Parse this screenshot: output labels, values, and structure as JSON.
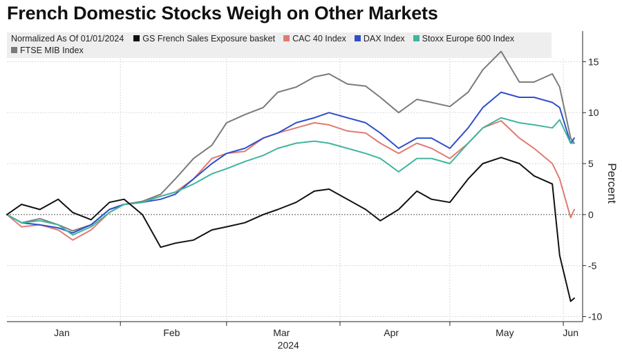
{
  "title": "French Domestic Stocks Weigh on Other Markets",
  "chart_data": {
    "type": "line",
    "title": "French Domestic Stocks Weigh on Other Markets",
    "subtitle": "Normalized As Of 01/01/2024",
    "xlabel": "2024",
    "ylabel": "Percent",
    "x_range": [
      "2024-01-01",
      "2024-06-04"
    ],
    "ylim": [
      -10.5,
      18
    ],
    "y_ticks": [
      -10,
      -5,
      0,
      5,
      10,
      15
    ],
    "x_ticks": [
      {
        "label": "Jan",
        "date": "2024-01-16"
      },
      {
        "label": "Feb",
        "date": "2024-02-15"
      },
      {
        "label": "Mar",
        "date": "2024-03-16"
      },
      {
        "label": "Apr",
        "date": "2024-04-15"
      },
      {
        "label": "May",
        "date": "2024-05-16"
      },
      {
        "label": "Jun",
        "date": "2024-06-03"
      }
    ],
    "grid": true,
    "legend_position": "top",
    "y_axis_side": "right",
    "series": [
      {
        "name": "FTSE MIB Index",
        "color": "#7a7a7a",
        "points": [
          [
            "2024-01-01",
            0.0
          ],
          [
            "2024-01-05",
            -0.8
          ],
          [
            "2024-01-10",
            -0.4
          ],
          [
            "2024-01-15",
            -1.0
          ],
          [
            "2024-01-19",
            -1.6
          ],
          [
            "2024-01-24",
            -1.0
          ],
          [
            "2024-01-29",
            0.5
          ],
          [
            "2024-02-02",
            1.0
          ],
          [
            "2024-02-07",
            1.3
          ],
          [
            "2024-02-12",
            2.0
          ],
          [
            "2024-02-16",
            3.5
          ],
          [
            "2024-02-21",
            5.5
          ],
          [
            "2024-02-26",
            6.8
          ],
          [
            "2024-03-01",
            9.0
          ],
          [
            "2024-03-06",
            9.8
          ],
          [
            "2024-03-11",
            10.5
          ],
          [
            "2024-03-15",
            12.0
          ],
          [
            "2024-03-20",
            12.5
          ],
          [
            "2024-03-25",
            13.5
          ],
          [
            "2024-03-29",
            13.8
          ],
          [
            "2024-04-03",
            12.8
          ],
          [
            "2024-04-08",
            12.6
          ],
          [
            "2024-04-12",
            11.5
          ],
          [
            "2024-04-17",
            10.0
          ],
          [
            "2024-04-22",
            11.3
          ],
          [
            "2024-04-26",
            11.0
          ],
          [
            "2024-05-01",
            10.6
          ],
          [
            "2024-05-06",
            12.0
          ],
          [
            "2024-05-10",
            14.2
          ],
          [
            "2024-05-15",
            16.0
          ],
          [
            "2024-05-20",
            13.0
          ],
          [
            "2024-05-24",
            13.0
          ],
          [
            "2024-05-29",
            13.8
          ],
          [
            "2024-05-31",
            12.5
          ],
          [
            "2024-06-03",
            7.5
          ],
          [
            "2024-06-04",
            7.0
          ]
        ]
      },
      {
        "name": "CAC 40 Index",
        "color": "#e07a72",
        "points": [
          [
            "2024-01-01",
            0.0
          ],
          [
            "2024-01-05",
            -1.2
          ],
          [
            "2024-01-10",
            -1.0
          ],
          [
            "2024-01-15",
            -1.5
          ],
          [
            "2024-01-19",
            -2.5
          ],
          [
            "2024-01-24",
            -1.5
          ],
          [
            "2024-01-29",
            0.2
          ],
          [
            "2024-02-02",
            1.0
          ],
          [
            "2024-02-07",
            1.2
          ],
          [
            "2024-02-12",
            1.8
          ],
          [
            "2024-02-16",
            2.2
          ],
          [
            "2024-02-21",
            3.5
          ],
          [
            "2024-02-26",
            5.5
          ],
          [
            "2024-03-01",
            6.0
          ],
          [
            "2024-03-06",
            6.2
          ],
          [
            "2024-03-11",
            7.5
          ],
          [
            "2024-03-15",
            8.0
          ],
          [
            "2024-03-20",
            8.5
          ],
          [
            "2024-03-25",
            9.0
          ],
          [
            "2024-03-29",
            8.8
          ],
          [
            "2024-04-03",
            8.2
          ],
          [
            "2024-04-08",
            8.0
          ],
          [
            "2024-04-12",
            7.0
          ],
          [
            "2024-04-17",
            6.0
          ],
          [
            "2024-04-22",
            7.0
          ],
          [
            "2024-04-26",
            6.5
          ],
          [
            "2024-05-01",
            5.5
          ],
          [
            "2024-05-06",
            7.0
          ],
          [
            "2024-05-10",
            8.5
          ],
          [
            "2024-05-15",
            9.2
          ],
          [
            "2024-05-20",
            7.5
          ],
          [
            "2024-05-24",
            6.5
          ],
          [
            "2024-05-29",
            5.0
          ],
          [
            "2024-05-31",
            3.5
          ],
          [
            "2024-06-03",
            -0.3
          ],
          [
            "2024-06-04",
            0.5
          ]
        ]
      },
      {
        "name": "DAX Index",
        "color": "#2f4fc9",
        "points": [
          [
            "2024-01-01",
            0.0
          ],
          [
            "2024-01-05",
            -0.8
          ],
          [
            "2024-01-10",
            -1.0
          ],
          [
            "2024-01-15",
            -1.3
          ],
          [
            "2024-01-19",
            -1.8
          ],
          [
            "2024-01-24",
            -1.0
          ],
          [
            "2024-01-29",
            0.5
          ],
          [
            "2024-02-02",
            1.0
          ],
          [
            "2024-02-07",
            1.2
          ],
          [
            "2024-02-12",
            1.5
          ],
          [
            "2024-02-16",
            2.0
          ],
          [
            "2024-02-21",
            3.5
          ],
          [
            "2024-02-26",
            5.0
          ],
          [
            "2024-03-01",
            6.0
          ],
          [
            "2024-03-06",
            6.5
          ],
          [
            "2024-03-11",
            7.5
          ],
          [
            "2024-03-15",
            8.0
          ],
          [
            "2024-03-20",
            9.0
          ],
          [
            "2024-03-25",
            9.5
          ],
          [
            "2024-03-29",
            10.0
          ],
          [
            "2024-04-03",
            9.5
          ],
          [
            "2024-04-08",
            9.0
          ],
          [
            "2024-04-12",
            8.0
          ],
          [
            "2024-04-17",
            6.5
          ],
          [
            "2024-04-22",
            7.5
          ],
          [
            "2024-04-26",
            7.5
          ],
          [
            "2024-05-01",
            6.5
          ],
          [
            "2024-05-06",
            8.5
          ],
          [
            "2024-05-10",
            10.5
          ],
          [
            "2024-05-15",
            12.0
          ],
          [
            "2024-05-20",
            11.5
          ],
          [
            "2024-05-24",
            11.5
          ],
          [
            "2024-05-29",
            11.0
          ],
          [
            "2024-05-31",
            10.5
          ],
          [
            "2024-06-03",
            7.0
          ],
          [
            "2024-06-04",
            7.5
          ]
        ]
      },
      {
        "name": "Stoxx Europe 600 Index",
        "color": "#3fb59d",
        "points": [
          [
            "2024-01-01",
            0.0
          ],
          [
            "2024-01-05",
            -0.8
          ],
          [
            "2024-01-10",
            -0.6
          ],
          [
            "2024-01-15",
            -1.0
          ],
          [
            "2024-01-19",
            -2.0
          ],
          [
            "2024-01-24",
            -1.2
          ],
          [
            "2024-01-29",
            0.2
          ],
          [
            "2024-02-02",
            1.0
          ],
          [
            "2024-02-07",
            1.2
          ],
          [
            "2024-02-12",
            1.8
          ],
          [
            "2024-02-16",
            2.2
          ],
          [
            "2024-02-21",
            3.0
          ],
          [
            "2024-02-26",
            4.0
          ],
          [
            "2024-03-01",
            4.5
          ],
          [
            "2024-03-06",
            5.2
          ],
          [
            "2024-03-11",
            5.8
          ],
          [
            "2024-03-15",
            6.5
          ],
          [
            "2024-03-20",
            7.0
          ],
          [
            "2024-03-25",
            7.2
          ],
          [
            "2024-03-29",
            7.0
          ],
          [
            "2024-04-03",
            6.5
          ],
          [
            "2024-04-08",
            6.0
          ],
          [
            "2024-04-12",
            5.5
          ],
          [
            "2024-04-17",
            4.2
          ],
          [
            "2024-04-22",
            5.5
          ],
          [
            "2024-04-26",
            5.5
          ],
          [
            "2024-05-01",
            5.0
          ],
          [
            "2024-05-06",
            7.0
          ],
          [
            "2024-05-10",
            8.5
          ],
          [
            "2024-05-15",
            9.5
          ],
          [
            "2024-05-20",
            9.0
          ],
          [
            "2024-05-24",
            8.8
          ],
          [
            "2024-05-29",
            8.5
          ],
          [
            "2024-05-31",
            9.3
          ],
          [
            "2024-06-03",
            7.0
          ],
          [
            "2024-06-04",
            7.0
          ]
        ]
      },
      {
        "name": "GS French Sales Exposure basket",
        "color": "#111111",
        "points": [
          [
            "2024-01-01",
            0.0
          ],
          [
            "2024-01-05",
            1.0
          ],
          [
            "2024-01-10",
            0.5
          ],
          [
            "2024-01-15",
            1.5
          ],
          [
            "2024-01-19",
            0.2
          ],
          [
            "2024-01-24",
            -0.5
          ],
          [
            "2024-01-29",
            1.2
          ],
          [
            "2024-02-02",
            1.5
          ],
          [
            "2024-02-07",
            0.0
          ],
          [
            "2024-02-12",
            -3.2
          ],
          [
            "2024-02-16",
            -2.8
          ],
          [
            "2024-02-21",
            -2.5
          ],
          [
            "2024-02-26",
            -1.5
          ],
          [
            "2024-03-01",
            -1.2
          ],
          [
            "2024-03-06",
            -0.8
          ],
          [
            "2024-03-11",
            0.0
          ],
          [
            "2024-03-15",
            0.5
          ],
          [
            "2024-03-20",
            1.2
          ],
          [
            "2024-03-25",
            2.3
          ],
          [
            "2024-03-29",
            2.5
          ],
          [
            "2024-04-03",
            1.5
          ],
          [
            "2024-04-08",
            0.5
          ],
          [
            "2024-04-12",
            -0.6
          ],
          [
            "2024-04-17",
            0.5
          ],
          [
            "2024-04-22",
            2.3
          ],
          [
            "2024-04-26",
            1.5
          ],
          [
            "2024-05-01",
            1.2
          ],
          [
            "2024-05-06",
            3.5
          ],
          [
            "2024-05-10",
            5.0
          ],
          [
            "2024-05-15",
            5.6
          ],
          [
            "2024-05-20",
            5.0
          ],
          [
            "2024-05-24",
            3.8
          ],
          [
            "2024-05-29",
            3.0
          ],
          [
            "2024-05-31",
            -4.0
          ],
          [
            "2024-06-03",
            -8.5
          ],
          [
            "2024-06-04",
            -8.2
          ]
        ]
      }
    ]
  }
}
